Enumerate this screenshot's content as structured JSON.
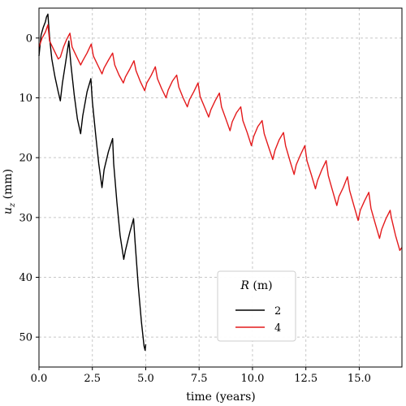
{
  "chart_data": {
    "type": "line",
    "xlabel": "time (years)",
    "ylabel": "u_z (mm)",
    "xlim": [
      0,
      17
    ],
    "ylim": [
      55,
      -5
    ],
    "y_inverted": true,
    "grid": true,
    "xticks": [
      "0.0",
      "2.5",
      "5.0",
      "7.5",
      "10.0",
      "12.5",
      "15.0"
    ],
    "yticks": [
      "0",
      "10",
      "20",
      "30",
      "40",
      "50"
    ],
    "legend": {
      "title": "R (m)",
      "placement": "lower-center"
    },
    "series": [
      {
        "name": "2",
        "color": "#000000",
        "points": [
          [
            0.0,
            3.0
          ],
          [
            0.1,
            -0.5
          ],
          [
            0.2,
            -1.8
          ],
          [
            0.3,
            -2.7
          ],
          [
            0.35,
            -3.5
          ],
          [
            0.42,
            -4.0
          ],
          [
            0.5,
            0.0
          ],
          [
            0.6,
            3.5
          ],
          [
            0.75,
            6.5
          ],
          [
            0.9,
            9.0
          ],
          [
            1.0,
            10.5
          ],
          [
            1.1,
            7.5
          ],
          [
            1.25,
            4.0
          ],
          [
            1.4,
            0.5
          ],
          [
            1.5,
            4.5
          ],
          [
            1.65,
            9.5
          ],
          [
            1.8,
            13.5
          ],
          [
            1.95,
            16.0
          ],
          [
            2.05,
            13.0
          ],
          [
            2.25,
            9.0
          ],
          [
            2.43,
            6.8
          ],
          [
            2.5,
            10.5
          ],
          [
            2.65,
            16.0
          ],
          [
            2.8,
            21.0
          ],
          [
            2.95,
            25.0
          ],
          [
            3.05,
            22.0
          ],
          [
            3.25,
            19.0
          ],
          [
            3.45,
            16.8
          ],
          [
            3.5,
            21.0
          ],
          [
            3.65,
            27.5
          ],
          [
            3.8,
            33.0
          ],
          [
            3.97,
            37.0
          ],
          [
            4.05,
            35.5
          ],
          [
            4.25,
            32.5
          ],
          [
            4.43,
            30.2
          ],
          [
            4.5,
            34.0
          ],
          [
            4.65,
            41.5
          ],
          [
            4.8,
            47.5
          ],
          [
            4.92,
            51.5
          ],
          [
            4.97,
            52.2
          ],
          [
            5.0,
            51.2
          ]
        ]
      },
      {
        "name": "4",
        "color": "#e41a1c",
        "points": [
          [
            0.0,
            1.5
          ],
          [
            0.15,
            0.0
          ],
          [
            0.3,
            -1.0
          ],
          [
            0.42,
            -2.2
          ],
          [
            0.5,
            0.5
          ],
          [
            0.7,
            2.0
          ],
          [
            0.9,
            3.5
          ],
          [
            1.0,
            3.2
          ],
          [
            1.15,
            1.5
          ],
          [
            1.3,
            0.2
          ],
          [
            1.45,
            -0.8
          ],
          [
            1.55,
            1.5
          ],
          [
            1.75,
            3.0
          ],
          [
            1.95,
            4.5
          ],
          [
            2.05,
            3.8
          ],
          [
            2.25,
            2.5
          ],
          [
            2.45,
            1.0
          ],
          [
            2.55,
            3.0
          ],
          [
            2.75,
            4.5
          ],
          [
            2.95,
            6.0
          ],
          [
            3.05,
            5.0
          ],
          [
            3.25,
            3.7
          ],
          [
            3.45,
            2.5
          ],
          [
            3.55,
            4.5
          ],
          [
            3.75,
            6.2
          ],
          [
            3.95,
            7.5
          ],
          [
            4.05,
            6.5
          ],
          [
            4.25,
            5.2
          ],
          [
            4.45,
            3.8
          ],
          [
            4.55,
            5.5
          ],
          [
            4.75,
            7.3
          ],
          [
            4.95,
            8.8
          ],
          [
            5.05,
            7.5
          ],
          [
            5.25,
            6.3
          ],
          [
            5.45,
            4.8
          ],
          [
            5.55,
            6.8
          ],
          [
            5.75,
            8.5
          ],
          [
            5.95,
            10.0
          ],
          [
            6.05,
            8.7
          ],
          [
            6.25,
            7.2
          ],
          [
            6.45,
            6.2
          ],
          [
            6.55,
            8.2
          ],
          [
            6.75,
            10.0
          ],
          [
            6.95,
            11.5
          ],
          [
            7.05,
            10.3
          ],
          [
            7.25,
            9.0
          ],
          [
            7.45,
            7.5
          ],
          [
            7.55,
            9.8
          ],
          [
            7.75,
            11.5
          ],
          [
            7.95,
            13.2
          ],
          [
            8.05,
            12.0
          ],
          [
            8.25,
            10.5
          ],
          [
            8.45,
            9.2
          ],
          [
            8.55,
            11.5
          ],
          [
            8.75,
            13.5
          ],
          [
            8.95,
            15.5
          ],
          [
            9.05,
            14.0
          ],
          [
            9.25,
            12.5
          ],
          [
            9.45,
            11.5
          ],
          [
            9.55,
            13.8
          ],
          [
            9.75,
            15.8
          ],
          [
            9.95,
            18.0
          ],
          [
            10.05,
            16.5
          ],
          [
            10.25,
            14.8
          ],
          [
            10.45,
            13.8
          ],
          [
            10.55,
            16.0
          ],
          [
            10.75,
            18.2
          ],
          [
            10.95,
            20.3
          ],
          [
            11.05,
            18.8
          ],
          [
            11.25,
            17.0
          ],
          [
            11.45,
            15.8
          ],
          [
            11.55,
            18.0
          ],
          [
            11.75,
            20.5
          ],
          [
            11.95,
            22.8
          ],
          [
            12.05,
            21.2
          ],
          [
            12.25,
            19.5
          ],
          [
            12.45,
            18.0
          ],
          [
            12.55,
            20.5
          ],
          [
            12.75,
            22.8
          ],
          [
            12.95,
            25.2
          ],
          [
            13.05,
            23.8
          ],
          [
            13.25,
            22.0
          ],
          [
            13.45,
            20.5
          ],
          [
            13.55,
            23.0
          ],
          [
            13.75,
            25.5
          ],
          [
            13.95,
            28.0
          ],
          [
            14.05,
            26.5
          ],
          [
            14.25,
            25.0
          ],
          [
            14.45,
            23.2
          ],
          [
            14.55,
            25.5
          ],
          [
            14.75,
            28.0
          ],
          [
            14.95,
            30.5
          ],
          [
            15.05,
            28.8
          ],
          [
            15.25,
            27.2
          ],
          [
            15.45,
            25.8
          ],
          [
            15.55,
            28.5
          ],
          [
            15.75,
            31.0
          ],
          [
            15.95,
            33.5
          ],
          [
            16.05,
            32.0
          ],
          [
            16.25,
            30.2
          ],
          [
            16.45,
            28.8
          ],
          [
            16.5,
            30.0
          ],
          [
            16.7,
            33.0
          ],
          [
            16.9,
            35.5
          ],
          [
            17.0,
            35.0
          ]
        ]
      }
    ]
  }
}
